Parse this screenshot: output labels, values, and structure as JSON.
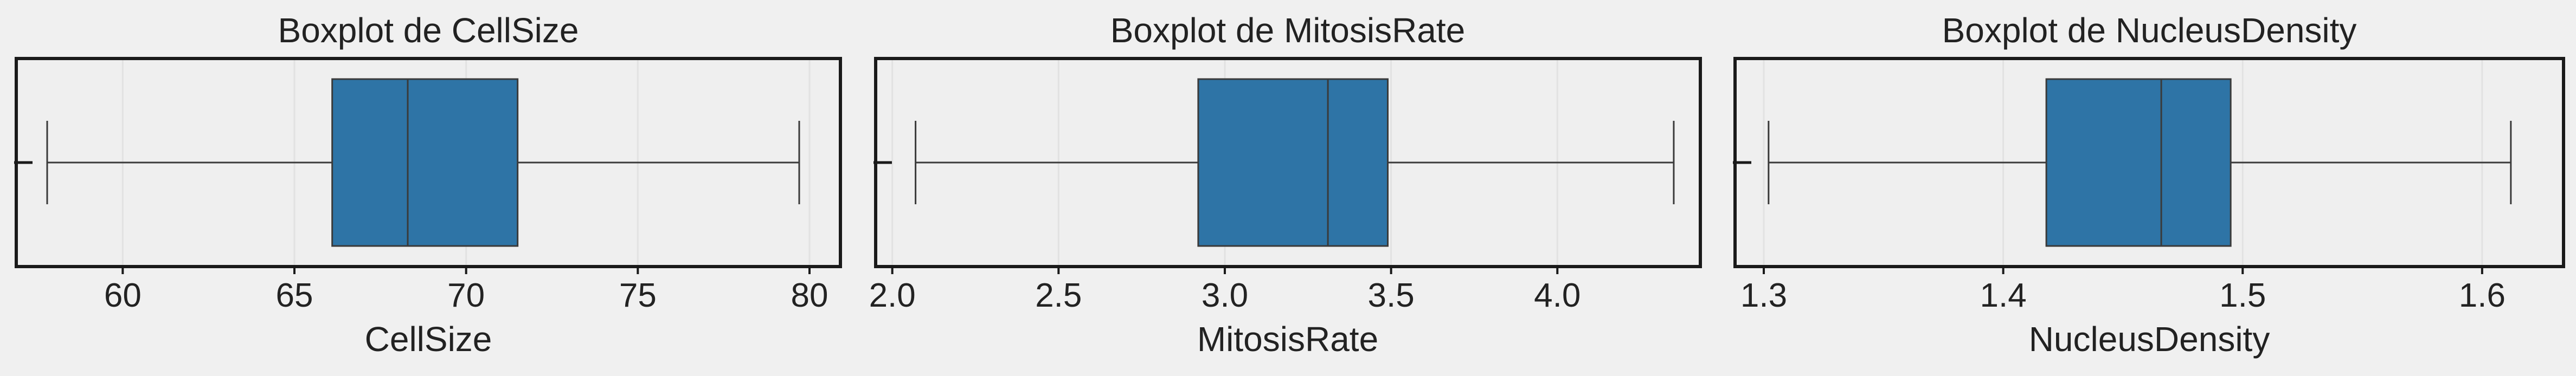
{
  "figure": {
    "background": "#f0f0f0",
    "panel_background": "#efefef",
    "box_color": "#2e74a6",
    "line_color": "#3a3a3a"
  },
  "chart_data": [
    {
      "type": "boxplot",
      "title": "Boxplot de CellSize",
      "xlabel": "CellSize",
      "ylabel": "",
      "xlim": [
        56.9,
        80.9
      ],
      "xticks": [
        60,
        65,
        70,
        75,
        80
      ],
      "xtick_labels": [
        "60",
        "65",
        "70",
        "75",
        "80"
      ],
      "stats": {
        "whisker_low": 57.8,
        "q1": 66.1,
        "median": 68.3,
        "q3": 71.5,
        "whisker_high": 79.7
      },
      "outliers": [
        56.8
      ],
      "grid": true,
      "orientation": "horizontal"
    },
    {
      "type": "boxplot",
      "title": "Boxplot de MitosisRate",
      "xlabel": "MitosisRate",
      "ylabel": "",
      "xlim": [
        1.95,
        4.43
      ],
      "xticks": [
        2.0,
        2.5,
        3.0,
        3.5,
        4.0
      ],
      "xtick_labels": [
        "2.0",
        "2.5",
        "3.0",
        "3.5",
        "4.0"
      ],
      "stats": {
        "whisker_low": 2.07,
        "q1": 2.92,
        "median": 3.31,
        "q3": 3.49,
        "whisker_high": 4.35
      },
      "outliers": [
        1.94
      ],
      "grid": true,
      "orientation": "horizontal"
    },
    {
      "type": "boxplot",
      "title": "Boxplot de NucleusDensity",
      "xlabel": "NucleusDensity",
      "ylabel": "",
      "xlim": [
        1.288,
        1.634
      ],
      "xticks": [
        1.3,
        1.4,
        1.5,
        1.6
      ],
      "xtick_labels": [
        "1.3",
        "1.4",
        "1.5",
        "1.6"
      ],
      "stats": {
        "whisker_low": 1.302,
        "q1": 1.418,
        "median": 1.466,
        "q3": 1.495,
        "whisker_high": 1.612
      },
      "outliers": [
        1.284
      ],
      "grid": true,
      "orientation": "horizontal"
    }
  ]
}
